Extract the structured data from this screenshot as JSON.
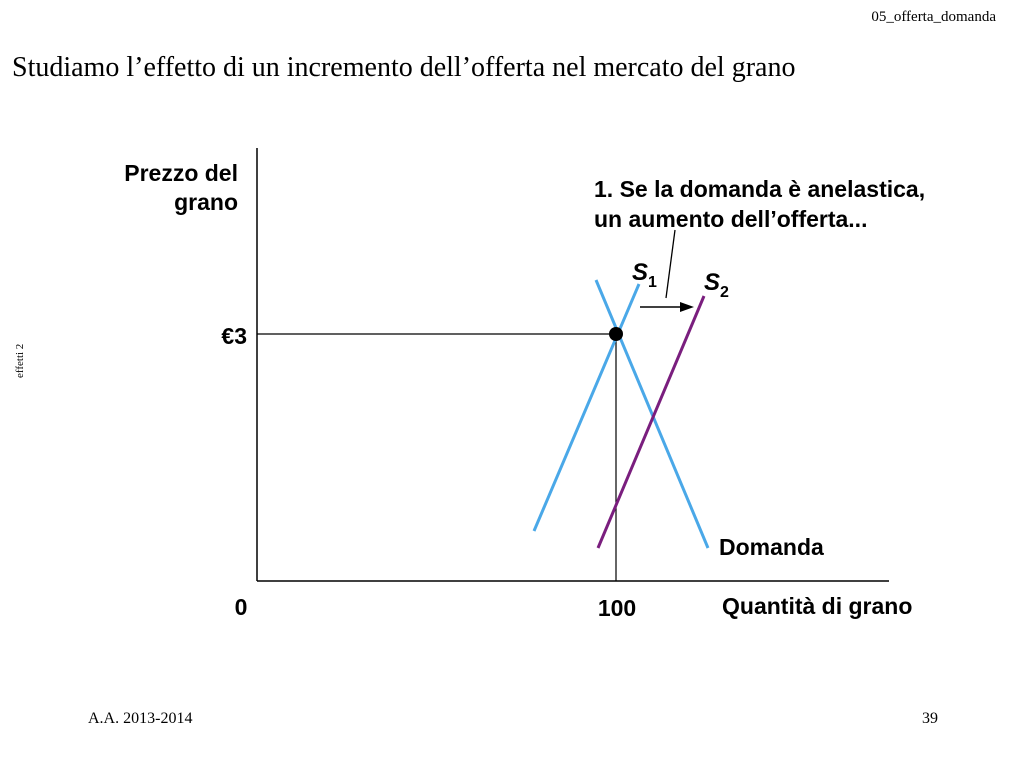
{
  "header": {
    "file_label": "05_offerta_domanda"
  },
  "title": "Studiamo l’effetto di un incremento dell’offerta nel mercato del grano",
  "side_note": "effetti 2",
  "footer": {
    "academic_year": "A.A. 2013-2014",
    "page_number": "39"
  },
  "diagram": {
    "y_axis_label_line1": "Prezzo del",
    "y_axis_label_line2": "grano",
    "x_axis_label": "Quantità di grano",
    "origin_label": "0",
    "price_label": "€3",
    "quantity_label": "100",
    "annotation_line1": "1. Se la domanda è anelastica,",
    "annotation_line2": "un aumento dell’offerta...",
    "s1_letter": "S",
    "s1_sub": "1",
    "s2_letter": "S",
    "s2_sub": "2",
    "demand_label": "Domanda",
    "colors": {
      "supply1": "#4aa8e8",
      "demand": "#4aa8e8",
      "supply2": "#7a1e7e",
      "axis": "#000000"
    }
  }
}
